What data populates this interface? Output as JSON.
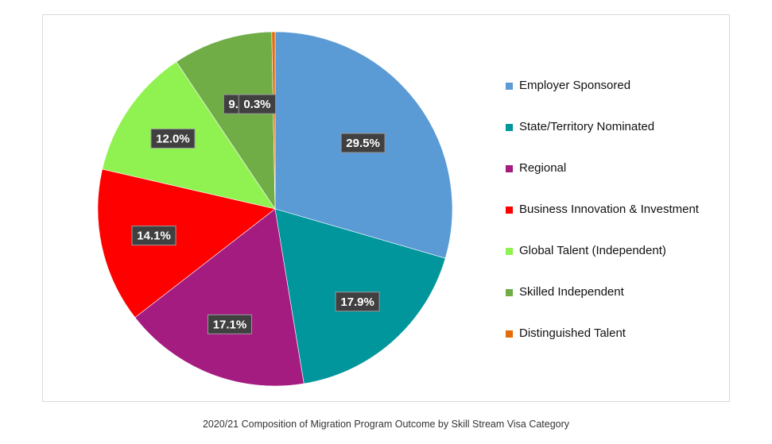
{
  "caption": "2020/21 Composition of Migration Program Outcome by Skill Stream Visa Category",
  "chart_data": {
    "type": "pie",
    "title": "",
    "start_angle": "12 o'clock, clockwise",
    "legend_position": "right",
    "slices": [
      {
        "name": "Employer Sponsored",
        "value": 29.5,
        "label": "29.5%",
        "color": "#5b9bd5"
      },
      {
        "name": "State/Territory Nominated",
        "value": 17.9,
        "label": "17.9%",
        "color": "#00969b"
      },
      {
        "name": "Regional",
        "value": 17.1,
        "label": "17.1%",
        "color": "#a41c80"
      },
      {
        "name": "Business Innovation & Investment",
        "value": 14.1,
        "label": "14.1%",
        "color": "#ff0000"
      },
      {
        "name": "Global Talent (Independent)",
        "value": 12.0,
        "label": "12.0%",
        "color": "#90f250"
      },
      {
        "name": "Skilled Independent",
        "value": 9.1,
        "label": "9.1%",
        "color": "#70ad47"
      },
      {
        "name": "Distinguished Talent",
        "value": 0.3,
        "label": "0.3%",
        "color": "#e36c0a"
      }
    ]
  }
}
